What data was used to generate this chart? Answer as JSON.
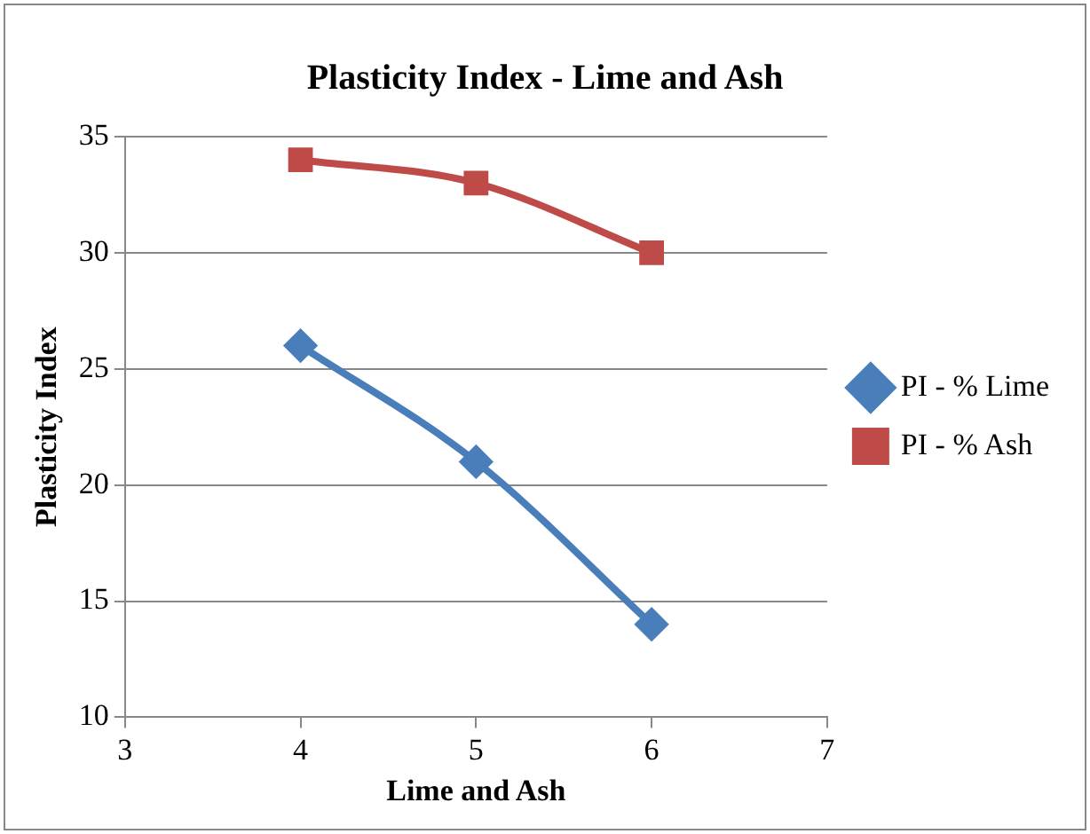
{
  "chart_data": {
    "type": "line",
    "title": "Plasticity Index - Lime and Ash",
    "xlabel": "Lime and Ash",
    "ylabel": "Plasticity Index",
    "x": [
      4,
      5,
      6
    ],
    "series": [
      {
        "name": "PI - % Lime",
        "color": "#4a7ebb",
        "values": [
          26,
          21,
          14
        ],
        "marker": "diamond"
      },
      {
        "name": "PI - % Ash",
        "color": "#be4b48",
        "values": [
          34,
          33,
          30
        ],
        "marker": "square"
      }
    ],
    "xlim": [
      3,
      7
    ],
    "xticks": [
      3,
      4,
      5,
      6,
      7
    ],
    "ylim": [
      10,
      35
    ],
    "yticks": [
      10,
      15,
      20,
      25,
      30,
      35
    ],
    "grid": "y",
    "legend": "right",
    "line_style": "solid"
  }
}
